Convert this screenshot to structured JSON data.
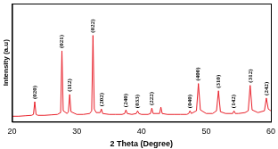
{
  "chart_data": {
    "type": "line",
    "x_label": "2 Theta (Degree)",
    "y_label": "Intensity (a.u)",
    "x": [
      20,
      21,
      22,
      23,
      23.3,
      23.5,
      23.7,
      24,
      25,
      26,
      27,
      27.5,
      27.7,
      27.9,
      28.5,
      28.7,
      28.9,
      29.1,
      30,
      31,
      32,
      32.3,
      32.5,
      32.7,
      33,
      33.6,
      33.8,
      34,
      35,
      36,
      37,
      37.4,
      37.6,
      37.8,
      38.5,
      39.2,
      39.4,
      39.6,
      40,
      41,
      41.4,
      41.6,
      41.8,
      42.8,
      43,
      43.2,
      44,
      45,
      46,
      47,
      47.3,
      47.5,
      47.7,
      48.5,
      48.8,
      49.1,
      50,
      51,
      51.6,
      51.9,
      52.2,
      53,
      54.1,
      54.3,
      54.5,
      55,
      56,
      56.5,
      56.8,
      57.1,
      58,
      59,
      59.3,
      59.6,
      60
    ],
    "values": [
      6,
      6,
      6.5,
      7,
      8,
      22,
      8,
      7,
      7,
      7.5,
      8,
      10,
      78,
      12,
      9,
      11,
      30,
      11,
      8,
      8,
      9,
      12,
      95,
      14,
      10,
      10,
      14,
      9,
      8,
      8,
      8,
      9,
      13,
      9,
      8,
      9,
      12,
      9,
      8,
      8,
      9,
      15,
      9,
      9,
      16,
      9,
      8,
      8,
      8,
      8,
      9,
      12,
      9,
      12,
      42,
      13,
      9,
      9,
      12,
      34,
      11,
      9,
      9,
      12,
      9,
      9,
      10,
      12,
      40,
      13,
      10,
      12,
      26,
      14,
      12
    ],
    "color": "#e8202a",
    "xlim": [
      20,
      60
    ],
    "xticks": [
      20,
      30,
      40,
      50,
      60
    ],
    "ylim": [
      0,
      130
    ],
    "tick_labels": "x",
    "grid": false,
    "annotations": [
      {
        "text": "(020)",
        "x": 23.5,
        "y": 22
      },
      {
        "text": "(021)",
        "x": 27.7,
        "y": 78
      },
      {
        "text": "(112)",
        "x": 28.9,
        "y": 30
      },
      {
        "text": "(022)",
        "x": 32.5,
        "y": 95
      },
      {
        "text": "(202)",
        "x": 33.8,
        "y": 14
      },
      {
        "text": "(240)",
        "x": 37.6,
        "y": 13
      },
      {
        "text": "(033)",
        "x": 39.4,
        "y": 12
      },
      {
        "text": "(222)",
        "x": 41.6,
        "y": 15
      },
      {
        "text": "(040)",
        "x": 47.5,
        "y": 12
      },
      {
        "text": "(400)",
        "x": 48.8,
        "y": 42
      },
      {
        "text": "(310)",
        "x": 51.9,
        "y": 34
      },
      {
        "text": "(142)",
        "x": 54.3,
        "y": 12
      },
      {
        "text": "(312)",
        "x": 56.8,
        "y": 40
      },
      {
        "text": "(242)",
        "x": 59.3,
        "y": 26
      }
    ]
  }
}
